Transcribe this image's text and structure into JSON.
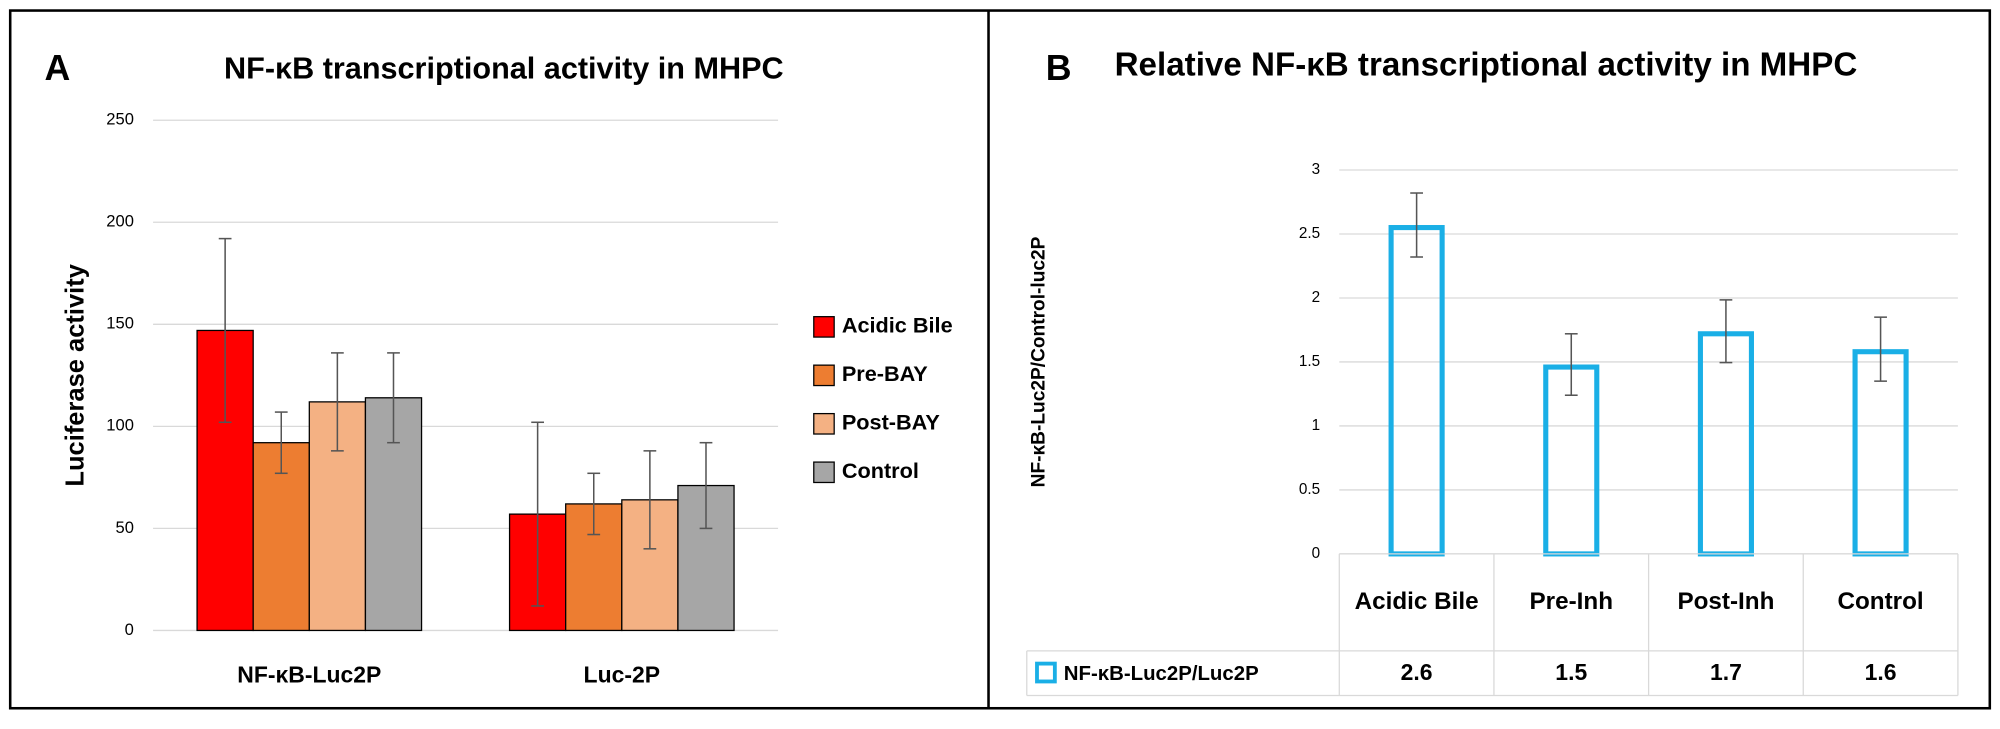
{
  "chart_data": [
    {
      "type": "bar",
      "panel_label": "A",
      "title": "NF-κB transcriptional activity in MHPC",
      "ylabel": "Luciferase activity",
      "categories": [
        "NF-κB-Luc2P",
        "Luc-2P"
      ],
      "series": [
        {
          "name": "Acidic Bile",
          "color": "#ff0000",
          "values": [
            147,
            57
          ],
          "errors": [
            45,
            45
          ]
        },
        {
          "name": "Pre-BAY",
          "color": "#ed7d31",
          "values": [
            92,
            62
          ],
          "errors": [
            15,
            15
          ]
        },
        {
          "name": "Post-BAY",
          "color": "#f4b183",
          "values": [
            112,
            64
          ],
          "errors": [
            24,
            24
          ]
        },
        {
          "name": "Control",
          "color": "#a6a6a6",
          "values": [
            114,
            71
          ],
          "errors": [
            22,
            21
          ]
        }
      ],
      "ylim": [
        0,
        250
      ],
      "yticks": [
        0,
        50,
        100,
        150,
        200,
        250
      ],
      "grid": true,
      "legend": "right"
    },
    {
      "type": "bar",
      "panel_label": "B",
      "title": "Relative NF-κB transcriptional activity in MHPC",
      "ylabel": "NF-κB-Luc2P/Control-luc2P",
      "categories": [
        "Acidic Bile",
        "Pre-Inh",
        "Post-Inh",
        "Control"
      ],
      "series": [
        {
          "name": "NF-κB-Luc2P/Luc2P",
          "color": "#1aafe6",
          "values": [
            2.57,
            1.48,
            1.74,
            1.6
          ],
          "value_labels": [
            "2.6",
            "1.5",
            "1.7",
            "1.6"
          ],
          "errors": [
            0.25,
            0.24,
            0.245,
            0.25
          ]
        }
      ],
      "ylim": [
        0,
        3
      ],
      "yticks": [
        0,
        0.5,
        1,
        1.5,
        2,
        2.5,
        3
      ],
      "grid": true,
      "bar_style": "outline",
      "data_table": true
    }
  ]
}
